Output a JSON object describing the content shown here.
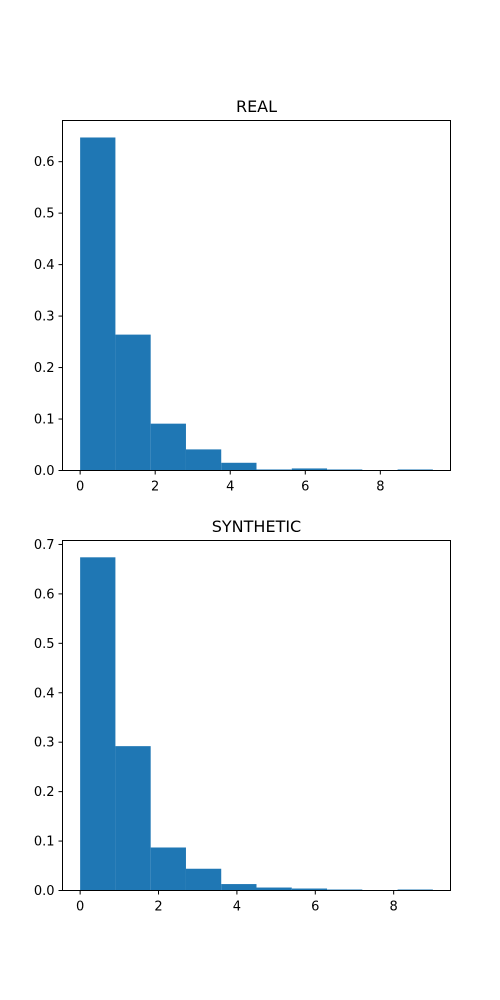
{
  "chart_data": [
    {
      "type": "bar",
      "title": "REAL",
      "xlabel": "",
      "ylabel": "",
      "bins": [
        {
          "x0": 0.0,
          "x1": 0.94,
          "value": 0.647
        },
        {
          "x0": 0.94,
          "x1": 1.88,
          "value": 0.264
        },
        {
          "x0": 1.88,
          "x1": 2.82,
          "value": 0.091
        },
        {
          "x0": 2.82,
          "x1": 3.76,
          "value": 0.041
        },
        {
          "x0": 3.76,
          "x1": 4.7,
          "value": 0.015
        },
        {
          "x0": 4.7,
          "x1": 5.64,
          "value": 0.002
        },
        {
          "x0": 5.64,
          "x1": 6.58,
          "value": 0.004
        },
        {
          "x0": 6.58,
          "x1": 7.52,
          "value": 0.002
        },
        {
          "x0": 7.52,
          "x1": 8.46,
          "value": 0.0
        },
        {
          "x0": 8.46,
          "x1": 9.4,
          "value": 0.002
        }
      ],
      "xlim": [
        -0.47,
        9.87
      ],
      "ylim": [
        0,
        0.68
      ],
      "xticks": [
        0,
        2,
        4,
        6,
        8
      ],
      "yticks": [
        0.0,
        0.1,
        0.2,
        0.3,
        0.4,
        0.5,
        0.6
      ],
      "ytick_labels": [
        "0.0",
        "0.1",
        "0.2",
        "0.3",
        "0.4",
        "0.5",
        "0.6"
      ],
      "color": "#1f77b4",
      "grid": false
    },
    {
      "type": "bar",
      "title": "SYNTHETIC",
      "xlabel": "",
      "ylabel": "",
      "bins": [
        {
          "x0": 0.0,
          "x1": 0.9,
          "value": 0.674
        },
        {
          "x0": 0.9,
          "x1": 1.8,
          "value": 0.292
        },
        {
          "x0": 1.8,
          "x1": 2.7,
          "value": 0.087
        },
        {
          "x0": 2.7,
          "x1": 3.6,
          "value": 0.044
        },
        {
          "x0": 3.6,
          "x1": 4.5,
          "value": 0.013
        },
        {
          "x0": 4.5,
          "x1": 5.4,
          "value": 0.006
        },
        {
          "x0": 5.4,
          "x1": 6.3,
          "value": 0.004
        },
        {
          "x0": 6.3,
          "x1": 7.2,
          "value": 0.002
        },
        {
          "x0": 7.2,
          "x1": 8.1,
          "value": 0.0
        },
        {
          "x0": 8.1,
          "x1": 9.0,
          "value": 0.002
        }
      ],
      "xlim": [
        -0.45,
        9.45
      ],
      "ylim": [
        0,
        0.708
      ],
      "xticks": [
        0,
        2,
        4,
        6,
        8
      ],
      "yticks": [
        0.0,
        0.1,
        0.2,
        0.3,
        0.4,
        0.5,
        0.6,
        0.7
      ],
      "ytick_labels": [
        "0.0",
        "0.1",
        "0.2",
        "0.3",
        "0.4",
        "0.5",
        "0.6",
        "0.7"
      ],
      "color": "#1f77b4",
      "grid": false
    }
  ]
}
